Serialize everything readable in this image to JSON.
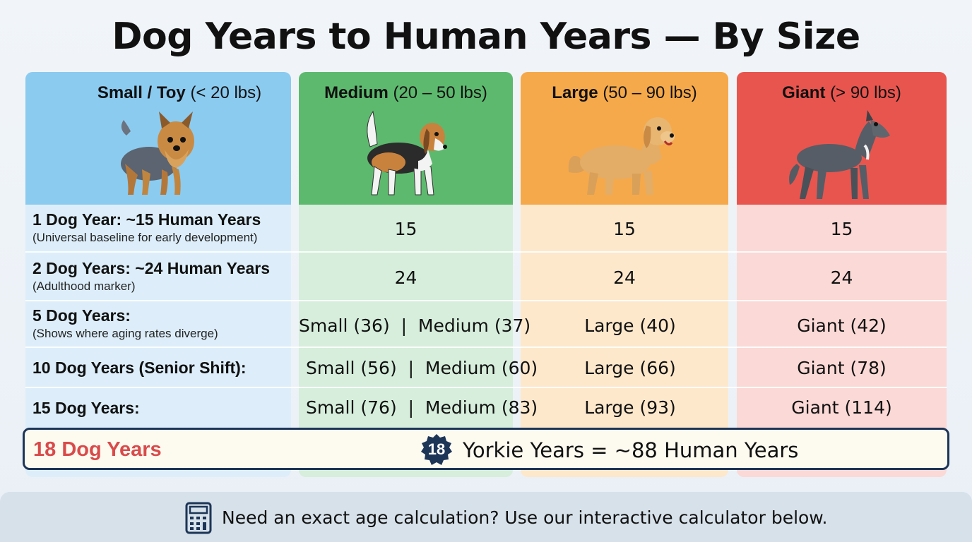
{
  "title": "Dog Years to Human Years — By Size",
  "columns": [
    {
      "name": "Small / Toy",
      "range": "(< 20 lbs)",
      "dog_icon": "yorkie-icon",
      "color": "#8ccbf0"
    },
    {
      "name": "Medium",
      "range": "(20 – 50 lbs)",
      "dog_icon": "beagle-icon",
      "color": "#5db96e"
    },
    {
      "name": "Large",
      "range": "(50 – 90 lbs)",
      "dog_icon": "golden-retriever-icon",
      "color": "#f5a94a"
    },
    {
      "name": "Giant",
      "range": "(> 90 lbs)",
      "dog_icon": "great-dane-icon",
      "color": "#e8554e"
    }
  ],
  "rows": [
    {
      "label": "1 Dog Year: ~15 Human Years",
      "sub": "(Universal baseline for early development)",
      "medium": "15",
      "large": "15",
      "giant": "15"
    },
    {
      "label": "2 Dog Years: ~24 Human Years",
      "sub": "(Adulthood marker)",
      "medium": "24",
      "large": "24",
      "giant": "24"
    },
    {
      "label": "5 Dog Years:",
      "sub": "(Shows where aging rates diverge)",
      "medium": "Small (36)  |  Medium (37)",
      "large": "Large (40)",
      "giant": "Giant (42)"
    },
    {
      "label": "10 Dog Years (Senior Shift):",
      "sub": "",
      "medium": "Small (56)  |  Medium (60)",
      "large": "Large (66)",
      "giant": "Giant (78)"
    },
    {
      "label": "15 Dog Years:",
      "sub": "",
      "medium": "Small (76)  |  Medium (83)",
      "large": "Large (93)",
      "giant": "Giant (114)"
    }
  ],
  "highlight": {
    "label": "18 Dog Years",
    "badge": "18",
    "text": "Yorkie Years = ~88 Human Years"
  },
  "footer": {
    "icon": "calculator-icon",
    "text": "Need an exact age calculation? Use our interactive calculator below."
  }
}
